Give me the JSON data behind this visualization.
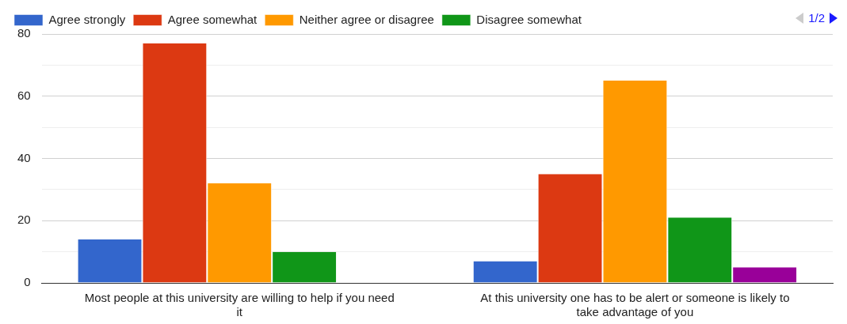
{
  "chart_data": {
    "type": "bar",
    "categories": [
      "Most people at this university are willing to help if you need it",
      "At this university one has to be alert or someone is likely to take advantage of you"
    ],
    "series": [
      {
        "name": "Agree strongly",
        "color": "#3366cc",
        "values": [
          14,
          7
        ]
      },
      {
        "name": "Agree somewhat",
        "color": "#dc3912",
        "values": [
          77,
          35
        ]
      },
      {
        "name": "Neither agree or disagree",
        "color": "#ff9900",
        "values": [
          32,
          65
        ]
      },
      {
        "name": "Disagree somewhat",
        "color": "#109618",
        "values": [
          10,
          21
        ]
      },
      {
        "color": "#990099",
        "values": [
          0,
          5
        ]
      }
    ],
    "ylim": [
      0,
      80
    ],
    "yticks": [
      0,
      {
        "value": 10,
        "label": null
      },
      20,
      {
        "value": 30,
        "label": null
      },
      40,
      {
        "value": 50,
        "label": null
      },
      60,
      {
        "value": 70,
        "label": null
      },
      80
    ],
    "grid": "y",
    "legend": "top",
    "annotations": [
      "1/2"
    ]
  }
}
